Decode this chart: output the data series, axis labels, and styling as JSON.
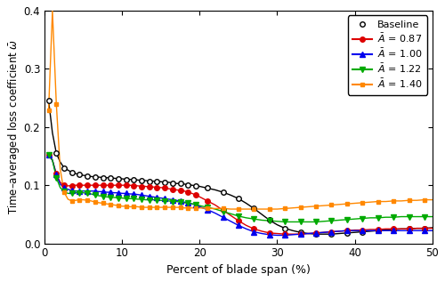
{
  "title": "",
  "xlabel": "Percent of blade span (%)",
  "ylabel": "Time–averaged loss coefficient $\\bar{\\omega}$",
  "xlim": [
    0,
    50
  ],
  "ylim": [
    0,
    0.4
  ],
  "yticks": [
    0,
    0.1,
    0.2,
    0.3,
    0.4
  ],
  "xticks": [
    0,
    10,
    20,
    30,
    40,
    50
  ],
  "series": {
    "baseline": {
      "color": "#000000",
      "marker": "o",
      "markerfacecolor": "white",
      "markersize": 4.0,
      "linewidth": 1.0,
      "label": "Baseline",
      "x": [
        0.5,
        1.0,
        1.5,
        2.0,
        2.5,
        3.0,
        3.5,
        4.0,
        4.5,
        5.0,
        5.5,
        6.0,
        6.5,
        7.0,
        7.5,
        8.0,
        8.5,
        9.0,
        9.5,
        10.0,
        10.5,
        11.0,
        11.5,
        12.0,
        12.5,
        13.0,
        13.5,
        14.0,
        14.5,
        15.0,
        15.5,
        16.0,
        16.5,
        17.0,
        17.5,
        18.0,
        18.5,
        19.0,
        19.5,
        20.0,
        21.0,
        22.0,
        23.0,
        24.0,
        25.0,
        26.0,
        27.0,
        28.0,
        29.0,
        30.0,
        31.0,
        32.0,
        33.0,
        34.0,
        35.0,
        36.0,
        37.0,
        38.0,
        39.0,
        40.0,
        41.0,
        42.0,
        43.0,
        44.0,
        45.0,
        46.0,
        47.0,
        48.0,
        49.0,
        50.0
      ],
      "y": [
        0.246,
        0.19,
        0.155,
        0.14,
        0.13,
        0.126,
        0.122,
        0.12,
        0.118,
        0.117,
        0.116,
        0.115,
        0.114,
        0.114,
        0.113,
        0.113,
        0.112,
        0.112,
        0.111,
        0.111,
        0.11,
        0.11,
        0.109,
        0.109,
        0.108,
        0.108,
        0.107,
        0.107,
        0.106,
        0.106,
        0.105,
        0.105,
        0.104,
        0.103,
        0.103,
        0.102,
        0.101,
        0.1,
        0.099,
        0.098,
        0.095,
        0.092,
        0.088,
        0.083,
        0.077,
        0.069,
        0.06,
        0.05,
        0.04,
        0.032,
        0.026,
        0.022,
        0.019,
        0.017,
        0.016,
        0.016,
        0.016,
        0.017,
        0.018,
        0.019,
        0.02,
        0.021,
        0.022,
        0.023,
        0.024,
        0.025,
        0.025,
        0.026,
        0.026,
        0.027
      ]
    },
    "A087": {
      "color": "#dd0000",
      "marker": "o",
      "markerfacecolor": "#dd0000",
      "markersize": 4.0,
      "linewidth": 1.0,
      "label": "$\\bar{A}$ = 0.87",
      "x": [
        0.5,
        1.0,
        1.5,
        2.0,
        2.5,
        3.0,
        3.5,
        4.0,
        4.5,
        5.0,
        5.5,
        6.0,
        6.5,
        7.0,
        7.5,
        8.0,
        8.5,
        9.0,
        9.5,
        10.0,
        10.5,
        11.0,
        11.5,
        12.0,
        12.5,
        13.0,
        13.5,
        14.0,
        14.5,
        15.0,
        15.5,
        16.0,
        16.5,
        17.0,
        17.5,
        18.0,
        18.5,
        19.0,
        19.5,
        20.0,
        21.0,
        22.0,
        23.0,
        24.0,
        25.0,
        26.0,
        27.0,
        28.0,
        29.0,
        30.0,
        31.0,
        32.0,
        33.0,
        34.0,
        35.0,
        36.0,
        37.0,
        38.0,
        39.0,
        40.0,
        41.0,
        42.0,
        43.0,
        44.0,
        45.0,
        46.0,
        47.0,
        48.0,
        49.0,
        50.0
      ],
      "y": [
        0.152,
        0.143,
        0.12,
        0.105,
        0.1,
        0.099,
        0.099,
        0.1,
        0.1,
        0.1,
        0.1,
        0.1,
        0.1,
        0.1,
        0.1,
        0.1,
        0.1,
        0.1,
        0.1,
        0.1,
        0.1,
        0.1,
        0.099,
        0.099,
        0.098,
        0.098,
        0.097,
        0.097,
        0.096,
        0.096,
        0.095,
        0.094,
        0.093,
        0.092,
        0.091,
        0.09,
        0.088,
        0.086,
        0.083,
        0.08,
        0.073,
        0.066,
        0.057,
        0.048,
        0.039,
        0.031,
        0.025,
        0.021,
        0.018,
        0.017,
        0.016,
        0.016,
        0.016,
        0.017,
        0.018,
        0.019,
        0.02,
        0.021,
        0.022,
        0.023,
        0.023,
        0.024,
        0.024,
        0.025,
        0.025,
        0.025,
        0.025,
        0.026,
        0.026,
        0.026
      ]
    },
    "A100": {
      "color": "#0000ee",
      "marker": "^",
      "markerfacecolor": "#0000ee",
      "markersize": 4.0,
      "linewidth": 1.0,
      "label": "$\\bar{A}$ = 1.00",
      "x": [
        0.5,
        1.0,
        1.5,
        2.0,
        2.5,
        3.0,
        3.5,
        4.0,
        4.5,
        5.0,
        5.5,
        6.0,
        6.5,
        7.0,
        7.5,
        8.0,
        8.5,
        9.0,
        9.5,
        10.0,
        10.5,
        11.0,
        11.5,
        12.0,
        12.5,
        13.0,
        13.5,
        14.0,
        14.5,
        15.0,
        15.5,
        16.0,
        16.5,
        17.0,
        17.5,
        18.0,
        18.5,
        19.0,
        19.5,
        20.0,
        21.0,
        22.0,
        23.0,
        24.0,
        25.0,
        26.0,
        27.0,
        28.0,
        29.0,
        30.0,
        31.0,
        32.0,
        33.0,
        34.0,
        35.0,
        36.0,
        37.0,
        38.0,
        39.0,
        40.0,
        41.0,
        42.0,
        43.0,
        44.0,
        45.0,
        46.0,
        47.0,
        48.0,
        49.0,
        50.0
      ],
      "y": [
        0.152,
        0.143,
        0.118,
        0.102,
        0.096,
        0.093,
        0.091,
        0.09,
        0.09,
        0.09,
        0.09,
        0.09,
        0.09,
        0.089,
        0.089,
        0.088,
        0.088,
        0.087,
        0.087,
        0.086,
        0.086,
        0.085,
        0.085,
        0.084,
        0.083,
        0.082,
        0.081,
        0.08,
        0.079,
        0.078,
        0.077,
        0.076,
        0.075,
        0.074,
        0.073,
        0.071,
        0.07,
        0.068,
        0.066,
        0.063,
        0.058,
        0.052,
        0.045,
        0.038,
        0.031,
        0.025,
        0.02,
        0.017,
        0.015,
        0.014,
        0.014,
        0.015,
        0.016,
        0.017,
        0.018,
        0.019,
        0.02,
        0.021,
        0.022,
        0.022,
        0.022,
        0.022,
        0.022,
        0.022,
        0.022,
        0.022,
        0.022,
        0.022,
        0.022,
        0.022
      ]
    },
    "A122": {
      "color": "#00aa00",
      "marker": "v",
      "markerfacecolor": "#00aa00",
      "markersize": 4.0,
      "linewidth": 1.0,
      "label": "$\\bar{A}$ = 1.22",
      "x": [
        0.5,
        1.0,
        1.5,
        2.0,
        2.5,
        3.0,
        3.5,
        4.0,
        4.5,
        5.0,
        5.5,
        6.0,
        6.5,
        7.0,
        7.5,
        8.0,
        8.5,
        9.0,
        9.5,
        10.0,
        10.5,
        11.0,
        11.5,
        12.0,
        12.5,
        13.0,
        13.5,
        14.0,
        14.5,
        15.0,
        15.5,
        16.0,
        16.5,
        17.0,
        17.5,
        18.0,
        18.5,
        19.0,
        19.5,
        20.0,
        21.0,
        22.0,
        23.0,
        24.0,
        25.0,
        26.0,
        27.0,
        28.0,
        29.0,
        30.0,
        31.0,
        32.0,
        33.0,
        34.0,
        35.0,
        36.0,
        37.0,
        38.0,
        39.0,
        40.0,
        41.0,
        42.0,
        43.0,
        44.0,
        45.0,
        46.0,
        47.0,
        48.0,
        49.0,
        50.0
      ],
      "y": [
        0.152,
        0.143,
        0.113,
        0.096,
        0.089,
        0.086,
        0.086,
        0.087,
        0.087,
        0.087,
        0.086,
        0.085,
        0.083,
        0.082,
        0.081,
        0.08,
        0.079,
        0.079,
        0.078,
        0.078,
        0.077,
        0.077,
        0.077,
        0.076,
        0.076,
        0.075,
        0.075,
        0.075,
        0.074,
        0.074,
        0.073,
        0.073,
        0.072,
        0.072,
        0.071,
        0.07,
        0.069,
        0.068,
        0.067,
        0.065,
        0.062,
        0.059,
        0.055,
        0.051,
        0.047,
        0.044,
        0.042,
        0.04,
        0.039,
        0.038,
        0.037,
        0.037,
        0.037,
        0.037,
        0.037,
        0.038,
        0.039,
        0.04,
        0.041,
        0.042,
        0.043,
        0.044,
        0.044,
        0.045,
        0.045,
        0.046,
        0.046,
        0.046,
        0.046,
        0.046
      ]
    },
    "A140": {
      "color": "#ff8800",
      "marker": "s",
      "markerfacecolor": "#ff8800",
      "markersize": 3.5,
      "linewidth": 1.0,
      "label": "$\\bar{A}$ = 1.40",
      "x": [
        0.5,
        1.0,
        1.5,
        2.0,
        2.5,
        3.0,
        3.5,
        4.0,
        4.5,
        5.0,
        5.5,
        6.0,
        6.5,
        7.0,
        7.5,
        8.0,
        8.5,
        9.0,
        9.5,
        10.0,
        10.5,
        11.0,
        11.5,
        12.0,
        12.5,
        13.0,
        13.5,
        14.0,
        14.5,
        15.0,
        15.5,
        16.0,
        16.5,
        17.0,
        17.5,
        18.0,
        18.5,
        19.0,
        19.5,
        20.0,
        21.0,
        22.0,
        23.0,
        24.0,
        25.0,
        26.0,
        27.0,
        28.0,
        29.0,
        30.0,
        31.0,
        32.0,
        33.0,
        34.0,
        35.0,
        36.0,
        37.0,
        38.0,
        39.0,
        40.0,
        41.0,
        42.0,
        43.0,
        44.0,
        45.0,
        46.0,
        47.0,
        48.0,
        49.0,
        50.0
      ],
      "y": [
        0.228,
        0.4,
        0.24,
        0.128,
        0.088,
        0.076,
        0.073,
        0.074,
        0.075,
        0.075,
        0.074,
        0.073,
        0.071,
        0.07,
        0.069,
        0.068,
        0.067,
        0.066,
        0.065,
        0.064,
        0.064,
        0.063,
        0.063,
        0.063,
        0.062,
        0.062,
        0.062,
        0.062,
        0.062,
        0.062,
        0.062,
        0.062,
        0.062,
        0.062,
        0.062,
        0.061,
        0.061,
        0.061,
        0.061,
        0.061,
        0.06,
        0.06,
        0.06,
        0.059,
        0.059,
        0.059,
        0.059,
        0.059,
        0.059,
        0.059,
        0.06,
        0.061,
        0.062,
        0.063,
        0.064,
        0.065,
        0.066,
        0.067,
        0.068,
        0.069,
        0.07,
        0.071,
        0.072,
        0.072,
        0.073,
        0.073,
        0.074,
        0.074,
        0.075,
        0.075
      ]
    }
  }
}
